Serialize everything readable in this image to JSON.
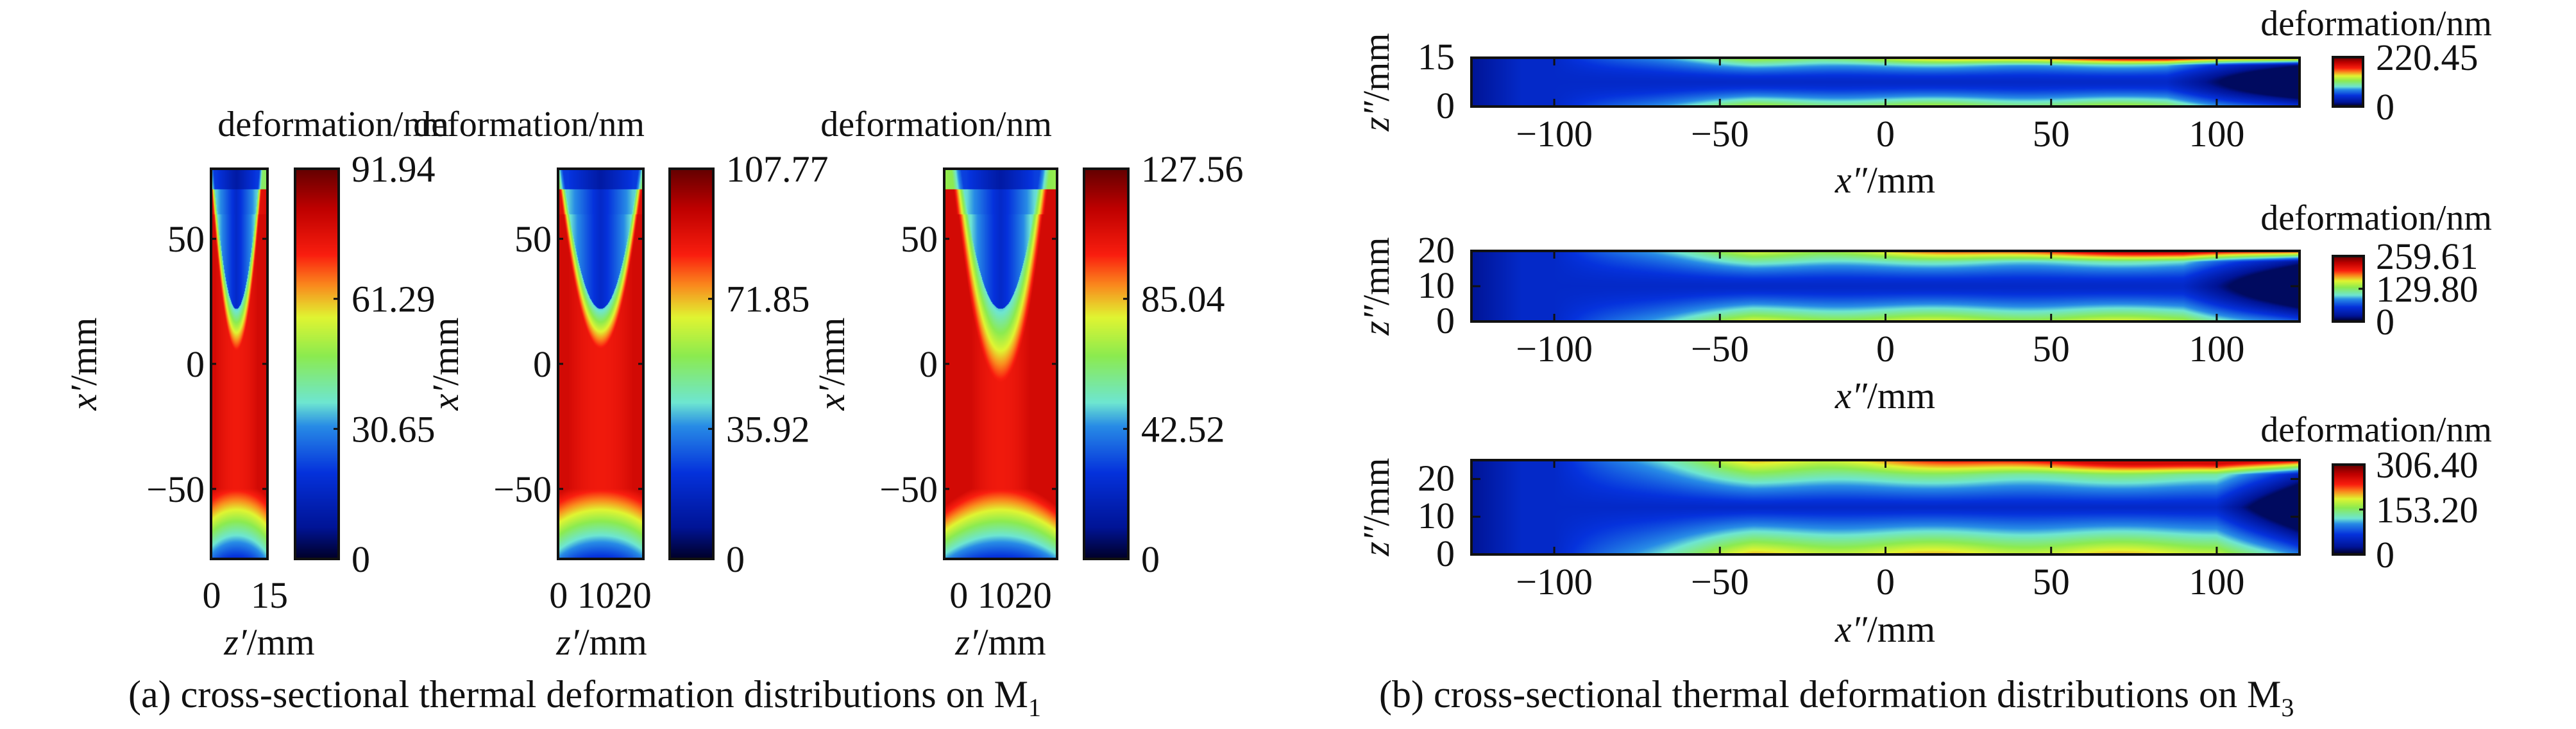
{
  "chart_data": [
    {
      "type": "heatmap",
      "panel": "a",
      "subplot": 1,
      "title": "deformation/nm",
      "xlabel": "z′/mm",
      "ylabel": "x′/mm",
      "xlim": [
        0,
        15
      ],
      "ylim": [
        -78,
        78
      ],
      "xticks": [
        "0",
        "15"
      ],
      "yticks": [
        {
          "value": 50,
          "label": "50"
        },
        {
          "value": 0,
          "label": "0"
        },
        {
          "value": -50,
          "label": "−50"
        }
      ],
      "colorbar": {
        "min": 0,
        "max": 91.94,
        "ticks": [
          "91.94",
          "61.29",
          "30.65",
          "0"
        ],
        "colormap": "jet"
      },
      "pattern": "asym-m1-15"
    },
    {
      "type": "heatmap",
      "panel": "a",
      "subplot": 2,
      "title": "deformation/nm",
      "xlabel": "z′/mm",
      "ylabel": "x′/mm",
      "xlim": [
        0,
        22
      ],
      "ylim": [
        -78,
        78
      ],
      "xticks": [
        "0",
        "10",
        "20"
      ],
      "xticks_text": "0 1020",
      "yticks": [
        {
          "value": 50,
          "label": "50"
        },
        {
          "value": 0,
          "label": "0"
        },
        {
          "value": -50,
          "label": "−50"
        }
      ],
      "colorbar": {
        "min": 0,
        "max": 107.77,
        "ticks": [
          "107.77",
          "71.85",
          "35.92",
          "0"
        ],
        "colormap": "jet"
      },
      "pattern": "m1-20"
    },
    {
      "type": "heatmap",
      "panel": "a",
      "subplot": 3,
      "title": "deformation/nm",
      "xlabel": "z′/mm",
      "ylabel": "x′/mm",
      "xlim": [
        0,
        25
      ],
      "ylim": [
        -78,
        78
      ],
      "xticks": [
        "0",
        "10",
        "20"
      ],
      "xticks_text": "0 1020",
      "yticks": [
        {
          "value": 50,
          "label": "50"
        },
        {
          "value": 0,
          "label": "0"
        },
        {
          "value": -50,
          "label": "−50"
        }
      ],
      "colorbar": {
        "min": 0,
        "max": 127.56,
        "ticks": [
          "127.56",
          "85.04",
          "42.52",
          "0"
        ],
        "colormap": "jet"
      },
      "pattern": "m1-25"
    },
    {
      "type": "heatmap",
      "panel": "b",
      "subplot": 1,
      "title": "deformation/nm",
      "xlabel": "x″/mm",
      "ylabel": "z″/mm",
      "xlim": [
        -125,
        125
      ],
      "ylim": [
        0,
        15
      ],
      "xticks": [
        "−100",
        "−50",
        "0",
        "50",
        "100"
      ],
      "yticks": [
        {
          "value": 15,
          "label": "15"
        },
        {
          "value": 0,
          "label": "0"
        }
      ],
      "colorbar": {
        "min": 0,
        "max": 220.45,
        "ticks": [
          "220.45",
          "0"
        ],
        "colormap": "jet"
      },
      "pattern": "m3-15"
    },
    {
      "type": "heatmap",
      "panel": "b",
      "subplot": 2,
      "title": "deformation/nm",
      "xlabel": "x″/mm",
      "ylabel": "z″/mm",
      "xlim": [
        -125,
        125
      ],
      "ylim": [
        0,
        20
      ],
      "xticks": [
        "−100",
        "−50",
        "0",
        "50",
        "100"
      ],
      "yticks": [
        {
          "value": 20,
          "label": "20"
        },
        {
          "value": 10,
          "label": "10"
        },
        {
          "value": 0,
          "label": "0"
        }
      ],
      "colorbar": {
        "min": 0,
        "max": 259.61,
        "ticks": [
          "259.61",
          "129.80",
          "0"
        ],
        "colormap": "jet"
      },
      "pattern": "m3-20"
    },
    {
      "type": "heatmap",
      "panel": "b",
      "subplot": 3,
      "title": "deformation/nm",
      "xlabel": "x″/mm",
      "ylabel": "z″/mm",
      "xlim": [
        -125,
        125
      ],
      "ylim": [
        0,
        25
      ],
      "xticks": [
        "−100",
        "−50",
        "0",
        "50",
        "100"
      ],
      "yticks": [
        {
          "value": 20,
          "label": "20"
        },
        {
          "value": 10,
          "label": "10"
        },
        {
          "value": 0,
          "label": "0"
        }
      ],
      "colorbar": {
        "min": 0,
        "max": 306.4,
        "ticks": [
          "306.40",
          "153.20",
          "0"
        ],
        "colormap": "jet"
      },
      "pattern": "m3-25"
    }
  ],
  "captions": {
    "a": {
      "text": "(a) cross-sectional thermal deformation distributions on M",
      "sub": "1"
    },
    "b": {
      "text": "(b) cross-sectional thermal deformation distributions on M",
      "sub": "3"
    }
  }
}
